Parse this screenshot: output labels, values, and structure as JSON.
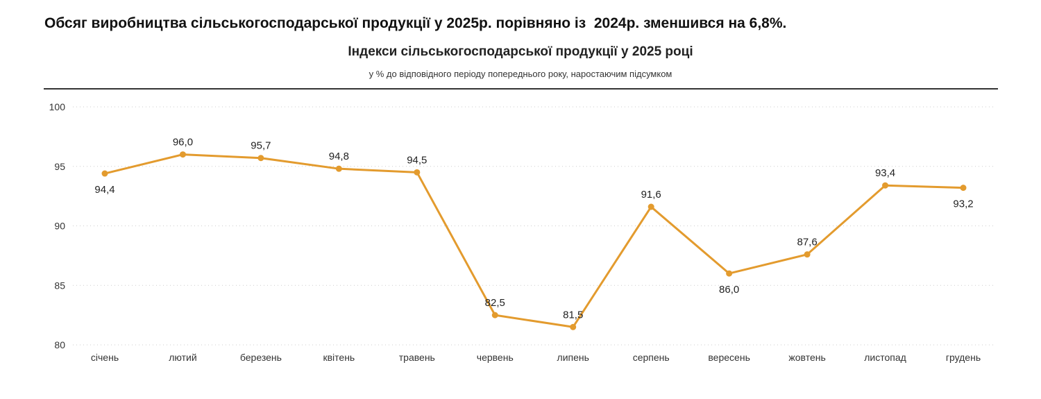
{
  "headline": "Обсяг виробництва сільськогосподарської продукції у 2025р. порівняно із  2024р. зменшився на 6,8%.",
  "chart_data": {
    "type": "line",
    "title": "Індекси сільськогосподарської продукції у 2025 році",
    "subtitle": "у % до відповідного періоду попереднього року, наростаючим підсумком",
    "categories": [
      "січень",
      "лютий",
      "березень",
      "квітень",
      "травень",
      "червень",
      "липень",
      "серпень",
      "вересень",
      "жовтень",
      "листопад",
      "грудень"
    ],
    "values": [
      94.4,
      96.0,
      95.7,
      94.8,
      94.5,
      82.5,
      81.5,
      91.6,
      86.0,
      87.6,
      93.4,
      93.2
    ],
    "data_labels": [
      "94,4",
      "96,0",
      "95,7",
      "94,8",
      "94,5",
      "82,5",
      "81,5",
      "91,6",
      "86,0",
      "87,6",
      "93,4",
      "93,2"
    ],
    "label_position": [
      "below",
      "above",
      "above",
      "above",
      "above",
      "above",
      "above",
      "above",
      "below",
      "above",
      "above",
      "below"
    ],
    "ylim": [
      80,
      100
    ],
    "yticks": [
      80,
      85,
      90,
      95,
      100
    ],
    "grid": true,
    "color": "#E39B2E"
  }
}
